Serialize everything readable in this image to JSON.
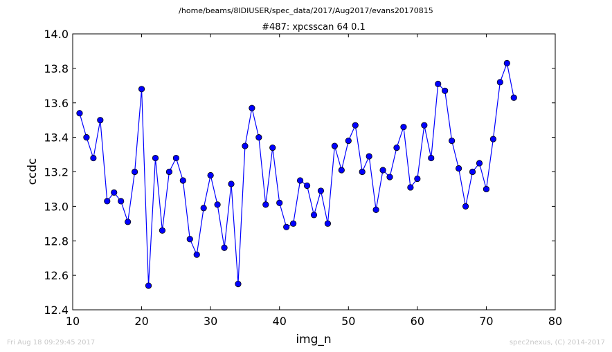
{
  "chart_data": {
    "type": "line",
    "suptitle": "/home/beams/8IDIUSER/spec_data/2017/Aug2017/evans20170815",
    "title": "#487: xpcsscan 64 0.1",
    "xlabel": "img_n",
    "ylabel": "ccdc",
    "xlim": [
      10,
      80
    ],
    "ylim": [
      12.4,
      14.0
    ],
    "xticks": [
      "10",
      "20",
      "30",
      "40",
      "50",
      "60",
      "70",
      "80"
    ],
    "yticks": [
      "12.4",
      "12.6",
      "12.8",
      "13.0",
      "13.2",
      "13.4",
      "13.6",
      "13.8",
      "14.0"
    ],
    "grid": false,
    "line_color": "#0000ff",
    "marker_color": "#0000ff",
    "x": [
      11,
      12,
      13,
      14,
      15,
      16,
      17,
      18,
      19,
      20,
      21,
      22,
      23,
      24,
      25,
      26,
      27,
      28,
      29,
      30,
      31,
      32,
      33,
      34,
      35,
      36,
      37,
      38,
      39,
      40,
      41,
      42,
      43,
      44,
      45,
      46,
      47,
      48,
      49,
      50,
      51,
      52,
      53,
      54,
      55,
      56,
      57,
      58,
      59,
      60,
      61,
      62,
      63,
      64,
      65,
      66,
      67,
      68,
      69,
      70,
      71,
      72,
      73,
      74
    ],
    "y": [
      13.54,
      13.4,
      13.28,
      13.5,
      13.03,
      13.08,
      13.03,
      12.91,
      13.2,
      13.68,
      12.54,
      13.28,
      12.86,
      13.2,
      13.28,
      13.15,
      12.81,
      12.72,
      12.99,
      13.18,
      13.01,
      12.76,
      13.13,
      12.55,
      13.35,
      13.57,
      13.4,
      13.01,
      13.34,
      13.02,
      12.88,
      12.9,
      13.15,
      13.12,
      12.95,
      13.09,
      12.9,
      13.35,
      13.21,
      13.38,
      13.47,
      13.2,
      13.29,
      12.98,
      13.21,
      13.17,
      13.34,
      13.46,
      13.11,
      13.16,
      13.47,
      13.28,
      13.71,
      13.67,
      13.38,
      13.22,
      13.0,
      13.2,
      13.25,
      13.1,
      13.39,
      13.72,
      13.83,
      13.63
    ]
  },
  "footer": {
    "timestamp": "Fri Aug 18 09:29:45 2017",
    "credit": "spec2nexus, (C) 2014-2017"
  }
}
